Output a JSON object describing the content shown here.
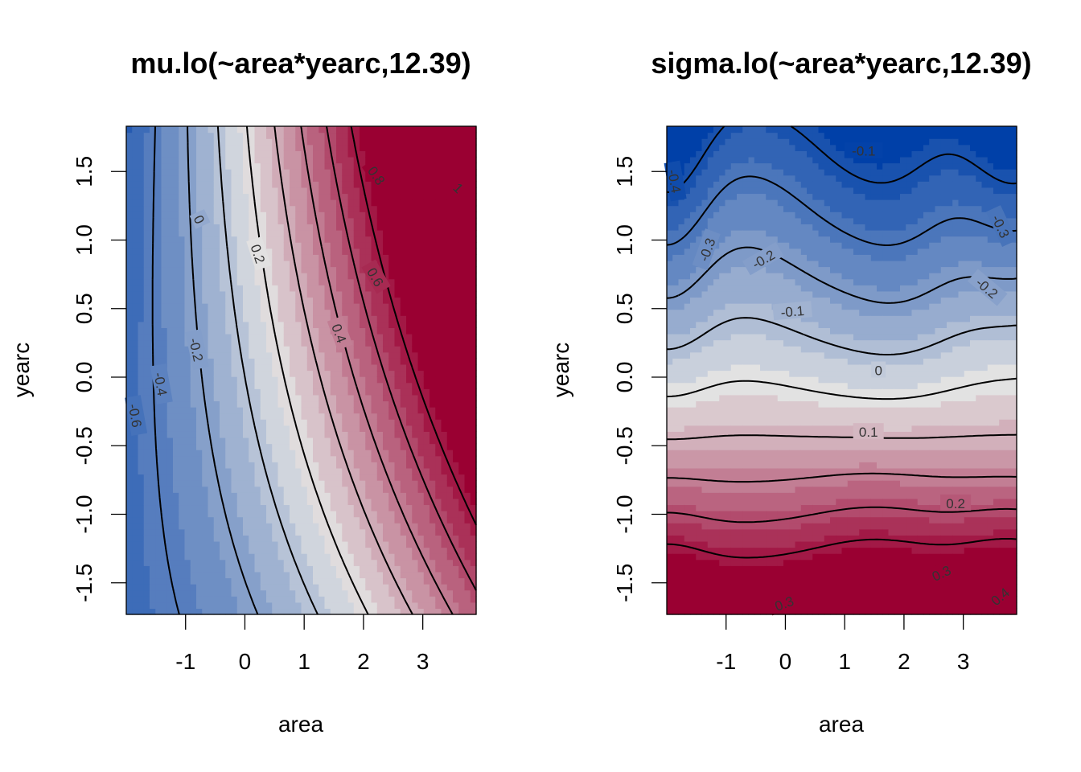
{
  "chart_data": [
    {
      "type": "heatmap",
      "title": "mu.lo(~area*yearc,12.39)",
      "xlabel": "area",
      "ylabel": "yearc",
      "xlim": [
        -2.0,
        3.9
      ],
      "ylim": [
        -1.73,
        1.83
      ],
      "x_ticks": [
        -1,
        0,
        1,
        2,
        3
      ],
      "y_ticks": [
        -1.5,
        -1.0,
        -0.5,
        0.0,
        0.5,
        1.0,
        1.5
      ],
      "x_tick_labels": [
        "-1",
        "0",
        "1",
        "2",
        "3"
      ],
      "y_tick_labels": [
        "-1.5",
        "-1.0",
        "-0.5",
        "0.0",
        "0.5",
        "1.0",
        "1.5"
      ],
      "color_range": [
        -0.75,
        1.1
      ],
      "colors": {
        "low": "#0040a8",
        "mid": "#e2e2e2",
        "high": "#9a0032"
      },
      "contour_levels": [
        -0.6,
        -0.4,
        -0.2,
        0,
        0.2,
        0.4,
        0.6,
        0.8,
        1
      ],
      "contour_labels": [
        {
          "text": "-0.6",
          "x": -1.85,
          "y": -0.28,
          "angle": 80
        },
        {
          "text": "-0.4",
          "x": -1.42,
          "y": -0.05,
          "angle": 80
        },
        {
          "text": "-0.2",
          "x": -0.82,
          "y": 0.2,
          "angle": 78
        },
        {
          "text": "0",
          "x": -0.77,
          "y": 1.15,
          "angle": 65
        },
        {
          "text": "0.2",
          "x": 0.22,
          "y": 0.9,
          "angle": 72
        },
        {
          "text": "0.4",
          "x": 1.59,
          "y": 0.32,
          "angle": 70
        },
        {
          "text": "0.6",
          "x": 2.2,
          "y": 0.73,
          "angle": 60
        },
        {
          "text": "0.8",
          "x": 2.22,
          "y": 1.47,
          "angle": 55
        },
        {
          "text": "1",
          "x": 3.6,
          "y": 1.38,
          "angle": 45
        }
      ]
    },
    {
      "type": "heatmap",
      "title": "sigma.lo(~area*yearc,12.39)",
      "xlabel": "area",
      "ylabel": "yearc",
      "xlim": [
        -2.0,
        3.9
      ],
      "ylim": [
        -1.73,
        1.83
      ],
      "x_ticks": [
        -1,
        0,
        1,
        2,
        3
      ],
      "y_ticks": [
        -1.5,
        -1.0,
        -0.5,
        0.0,
        0.5,
        1.0,
        1.5
      ],
      "x_tick_labels": [
        "-1",
        "0",
        "1",
        "2",
        "3"
      ],
      "y_tick_labels": [
        "-1.5",
        "-1.0",
        "-0.5",
        "0.0",
        "0.5",
        "1.0",
        "1.5"
      ],
      "color_range": [
        -0.45,
        0.45
      ],
      "colors": {
        "low": "#0040a8",
        "mid": "#e2e2e2",
        "high": "#9a0032"
      },
      "contour_levels": [
        -0.4,
        -0.3,
        -0.2,
        -0.1,
        0,
        0.1,
        0.2,
        0.3,
        0.4
      ],
      "contour_labels": [
        {
          "text": "-0.4",
          "x": -1.87,
          "y": 1.43,
          "angle": 80
        },
        {
          "text": "-0.3",
          "x": -1.32,
          "y": 0.93,
          "angle": -70
        },
        {
          "text": "-0.3",
          "x": 3.63,
          "y": 1.1,
          "angle": 65
        },
        {
          "text": "-0.2",
          "x": -0.37,
          "y": 0.86,
          "angle": -30
        },
        {
          "text": "-0.2",
          "x": 3.4,
          "y": 0.65,
          "angle": 40
        },
        {
          "text": "-0.1",
          "x": 1.32,
          "y": 1.65,
          "angle": 0
        },
        {
          "text": "-0.1",
          "x": 0.12,
          "y": 0.48,
          "angle": -5
        },
        {
          "text": "0",
          "x": 1.57,
          "y": 0.05,
          "angle": 0
        },
        {
          "text": "0.1",
          "x": 1.4,
          "y": -0.4,
          "angle": 0
        },
        {
          "text": "0.2",
          "x": 2.87,
          "y": -0.92,
          "angle": 0
        },
        {
          "text": "0.3",
          "x": -0.02,
          "y": -1.65,
          "angle": -20
        },
        {
          "text": "0.3",
          "x": 2.63,
          "y": -1.43,
          "angle": -25
        },
        {
          "text": "0.4",
          "x": 3.62,
          "y": -1.6,
          "angle": -40
        }
      ]
    }
  ]
}
